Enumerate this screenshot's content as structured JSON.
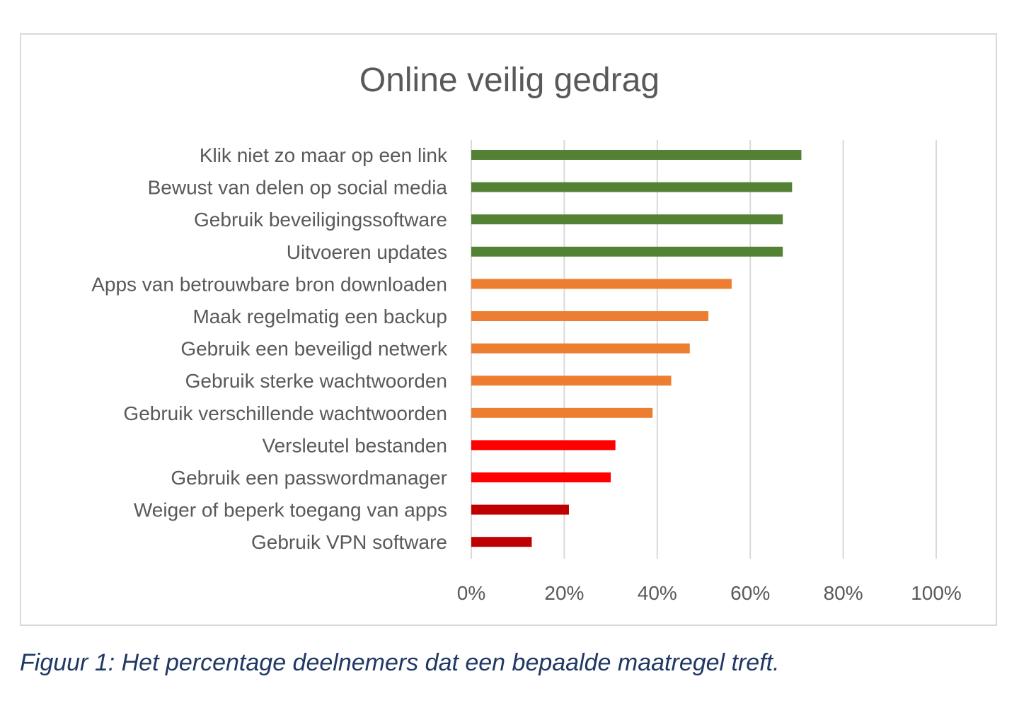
{
  "chart_data": {
    "type": "bar",
    "orientation": "horizontal",
    "title": "Online veilig gedrag",
    "categories": [
      "Klik niet zo maar op een link",
      "Bewust van delen op social media",
      "Gebruik beveiligingssoftware",
      "Uitvoeren updates",
      "Apps van betrouwbare bron downloaden",
      "Maak regelmatig een backup",
      "Gebruik een beveiligd netwerk",
      "Gebruik sterke wachtwoorden",
      "Gebruik verschillende wachtwoorden",
      "Versleutel bestanden",
      "Gebruik een passwordmanager",
      "Weiger of beperk toegang van apps",
      "Gebruik VPN software"
    ],
    "values": [
      71,
      69,
      67,
      67,
      56,
      51,
      47,
      43,
      39,
      31,
      30,
      21,
      13
    ],
    "colors": [
      "#548235",
      "#548235",
      "#548235",
      "#548235",
      "#ED7D31",
      "#ED7D31",
      "#ED7D31",
      "#ED7D31",
      "#ED7D31",
      "#FF0000",
      "#FF0000",
      "#C00000",
      "#C00000"
    ],
    "xlim": [
      0,
      100
    ],
    "xticks": [
      "0%",
      "20%",
      "40%",
      "60%",
      "80%",
      "100%"
    ],
    "grid": true,
    "xlabel": "",
    "ylabel": ""
  },
  "caption": "Figuur 1: Het percentage deelnemers dat een bepaalde maatregel treft."
}
